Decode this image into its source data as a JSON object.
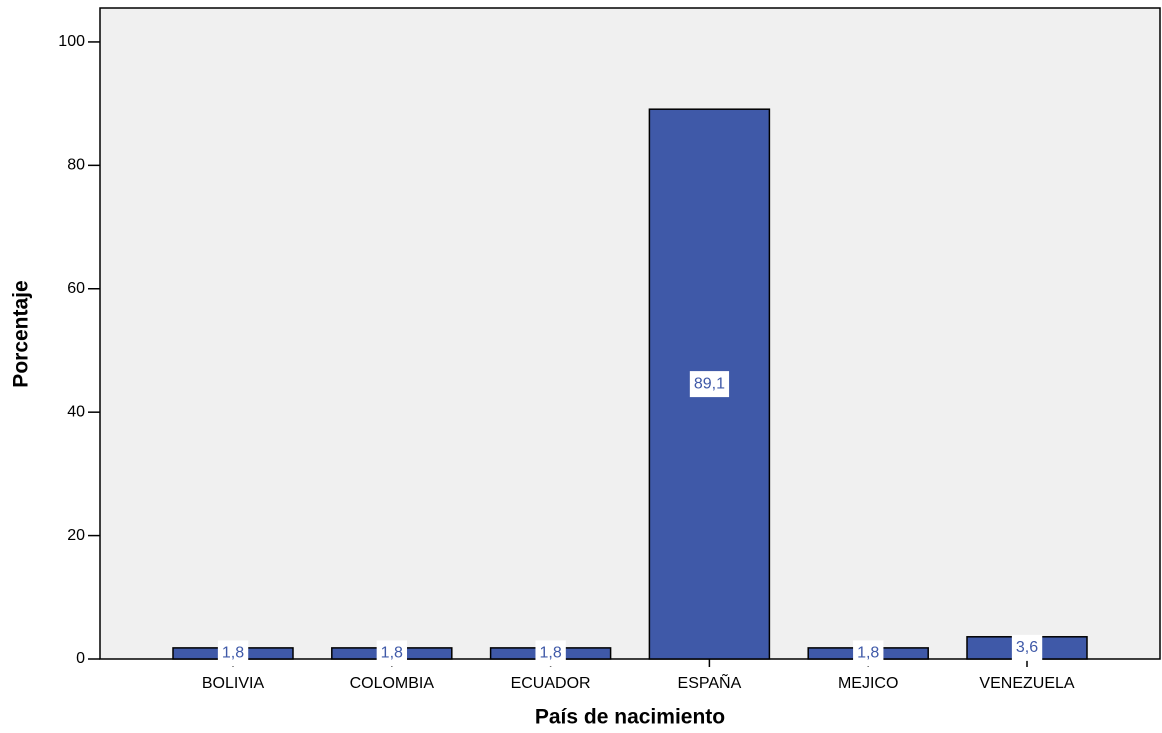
{
  "chart_data": {
    "type": "bar",
    "x_label": "País de nacimiento",
    "y_label": "Porcentaje",
    "categories": [
      "BOLIVIA",
      "COLOMBIA",
      "ECUADOR",
      "ESPAÑA",
      "MEJICO",
      "VENEZUELA"
    ],
    "values": [
      1.8,
      1.8,
      1.8,
      89.1,
      1.8,
      3.6
    ],
    "value_labels": [
      "1,8",
      "1,8",
      "1,8",
      "89,1",
      "1,8",
      "3,6"
    ],
    "color": "#3f59a8",
    "ylim": [
      0,
      105.5
    ],
    "yticks": [
      0,
      20,
      40,
      60,
      80,
      100
    ]
  }
}
